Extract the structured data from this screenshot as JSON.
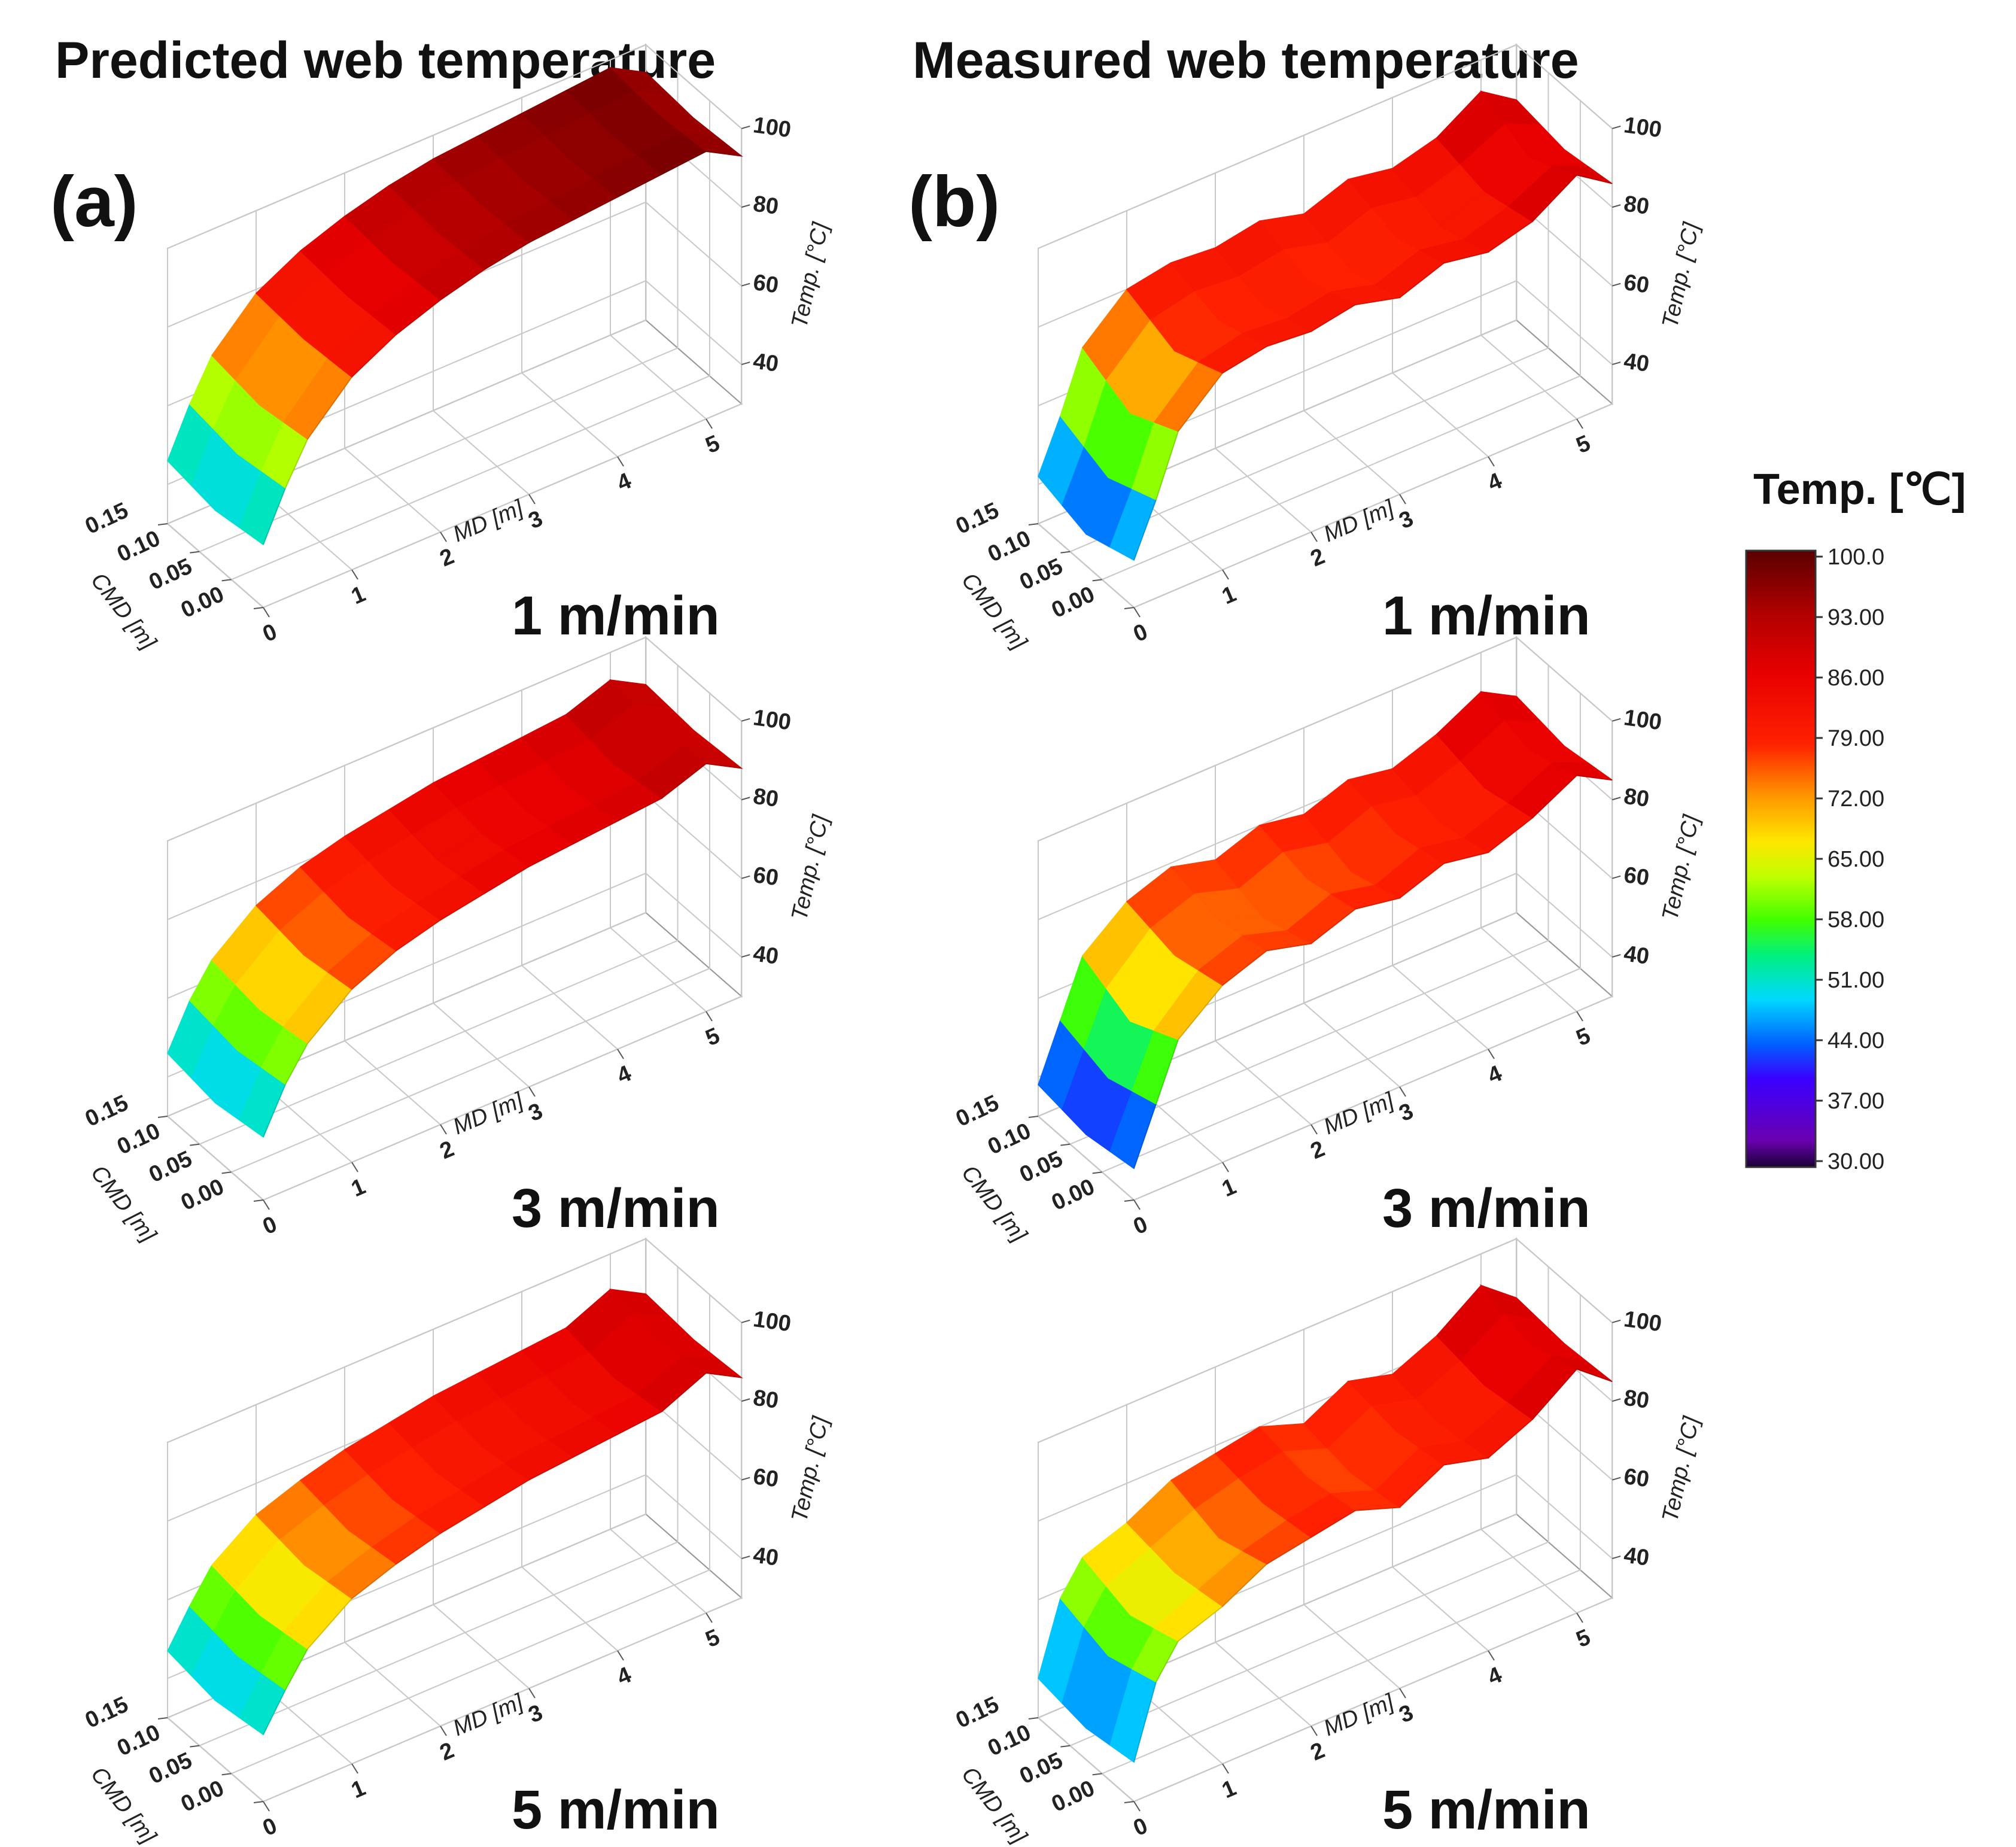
{
  "column_titles": {
    "left": "Predicted web temperature",
    "right": "Measured web temperature"
  },
  "panel_letters": {
    "left": "(a)",
    "right": "(b)"
  },
  "chart_data": {
    "type": "surface3d",
    "colorbar": {
      "title": "Temp. [℃]",
      "min": 30.0,
      "max": 100.0,
      "ticks": [
        "100.0",
        "93.00",
        "86.00",
        "79.00",
        "72.00",
        "65.00",
        "58.00",
        "51.00",
        "44.00",
        "37.00",
        "30.00"
      ],
      "stops": [
        {
          "value": 30,
          "color": "#1a0033"
        },
        {
          "value": 33,
          "color": "#6a00b0"
        },
        {
          "value": 40,
          "color": "#3a00ff"
        },
        {
          "value": 44,
          "color": "#0060ff"
        },
        {
          "value": 49,
          "color": "#00d8ff"
        },
        {
          "value": 54,
          "color": "#00f080"
        },
        {
          "value": 58,
          "color": "#40ff00"
        },
        {
          "value": 63,
          "color": "#c0ff00"
        },
        {
          "value": 67,
          "color": "#ffe600"
        },
        {
          "value": 72,
          "color": "#ff9800"
        },
        {
          "value": 78,
          "color": "#ff2200"
        },
        {
          "value": 86,
          "color": "#e80000"
        },
        {
          "value": 93,
          "color": "#b00000"
        },
        {
          "value": 100,
          "color": "#5a0000"
        }
      ]
    },
    "axes": {
      "xlabel": "MD [m]",
      "ylabel": "CMD [m]",
      "zlabel": "Temp. [°C]",
      "x_ticks": [
        "0",
        "1",
        "2",
        "3",
        "4",
        "5"
      ],
      "y_ticks": [
        "0.00",
        "0.05",
        "0.10",
        "0.15"
      ],
      "z_ticks": [
        "40",
        "60",
        "80",
        "100"
      ],
      "xlim": [
        0,
        5.4
      ],
      "ylim": [
        0,
        0.15
      ],
      "zlim": [
        30,
        100
      ]
    },
    "panels": [
      {
        "id": "a1",
        "column": "left",
        "speed": "1 m/min",
        "kind": "predicted",
        "md": [
          0,
          0.25,
          0.5,
          1,
          1.5,
          2,
          2.5,
          3,
          3.5,
          4,
          4.5,
          5,
          5.4
        ],
        "temp_edge": [
          46,
          58,
          68,
          79,
          85,
          89,
          92,
          94,
          95,
          96,
          97,
          98,
          93
        ],
        "temp_center": [
          44,
          56,
          66,
          78,
          84,
          88,
          91,
          93,
          94,
          95,
          96,
          97,
          92
        ]
      },
      {
        "id": "b1",
        "column": "right",
        "speed": "1 m/min",
        "kind": "measured",
        "md": [
          0,
          0.25,
          0.5,
          1,
          1.5,
          2,
          2.5,
          3,
          3.5,
          4,
          4.5,
          5,
          5.4
        ],
        "temp_edge": [
          42,
          55,
          70,
          80,
          82,
          81,
          83,
          80,
          84,
          82,
          85,
          92,
          86
        ],
        "temp_center": [
          38,
          50,
          64,
          75,
          78,
          77,
          79,
          76,
          80,
          78,
          82,
          86,
          84
        ]
      },
      {
        "id": "a2",
        "column": "left",
        "speed": "3 m/min",
        "kind": "predicted",
        "md": [
          0,
          0.25,
          0.5,
          1,
          1.5,
          2,
          2.5,
          3,
          3.5,
          4,
          4.5,
          5,
          5.4
        ],
        "temp_edge": [
          46,
          57,
          65,
          74,
          79,
          82,
          84,
          86,
          87,
          88,
          89,
          93,
          88
        ],
        "temp_center": [
          44,
          55,
          63,
          72,
          77,
          80,
          82,
          84,
          85,
          86,
          87,
          91,
          87
        ]
      },
      {
        "id": "b2",
        "column": "right",
        "speed": "3 m/min",
        "kind": "measured",
        "md": [
          0,
          0.25,
          0.5,
          1,
          1.5,
          2,
          2.5,
          3,
          3.5,
          4,
          4.5,
          5,
          5.4
        ],
        "temp_edge": [
          38,
          52,
          66,
          75,
          79,
          76,
          80,
          78,
          82,
          80,
          84,
          90,
          85
        ],
        "temp_center": [
          36,
          48,
          60,
          72,
          76,
          72,
          77,
          74,
          79,
          77,
          81,
          86,
          83
        ]
      },
      {
        "id": "a3",
        "column": "left",
        "speed": "5 m/min",
        "kind": "predicted",
        "md": [
          0,
          0.25,
          0.5,
          1,
          1.5,
          2,
          2.5,
          3,
          3.5,
          4,
          4.5,
          5,
          5.4
        ],
        "temp_edge": [
          47,
          56,
          64,
          72,
          76,
          79,
          81,
          83,
          84,
          85,
          86,
          91,
          86
        ],
        "temp_center": [
          45,
          54,
          62,
          70,
          74,
          77,
          79,
          81,
          82,
          83,
          84,
          89,
          85
        ]
      },
      {
        "id": "b3",
        "column": "right",
        "speed": "5 m/min",
        "kind": "measured",
        "md": [
          0,
          0.25,
          0.5,
          1,
          1.5,
          2,
          2.5,
          3,
          3.5,
          4,
          4.5,
          5,
          5.4
        ],
        "temp_edge": [
          40,
          58,
          66,
          70,
          76,
          78,
          80,
          76,
          82,
          79,
          84,
          92,
          85
        ],
        "temp_center": [
          38,
          54,
          62,
          68,
          72,
          76,
          78,
          74,
          80,
          77,
          82,
          88,
          84
        ]
      }
    ]
  }
}
